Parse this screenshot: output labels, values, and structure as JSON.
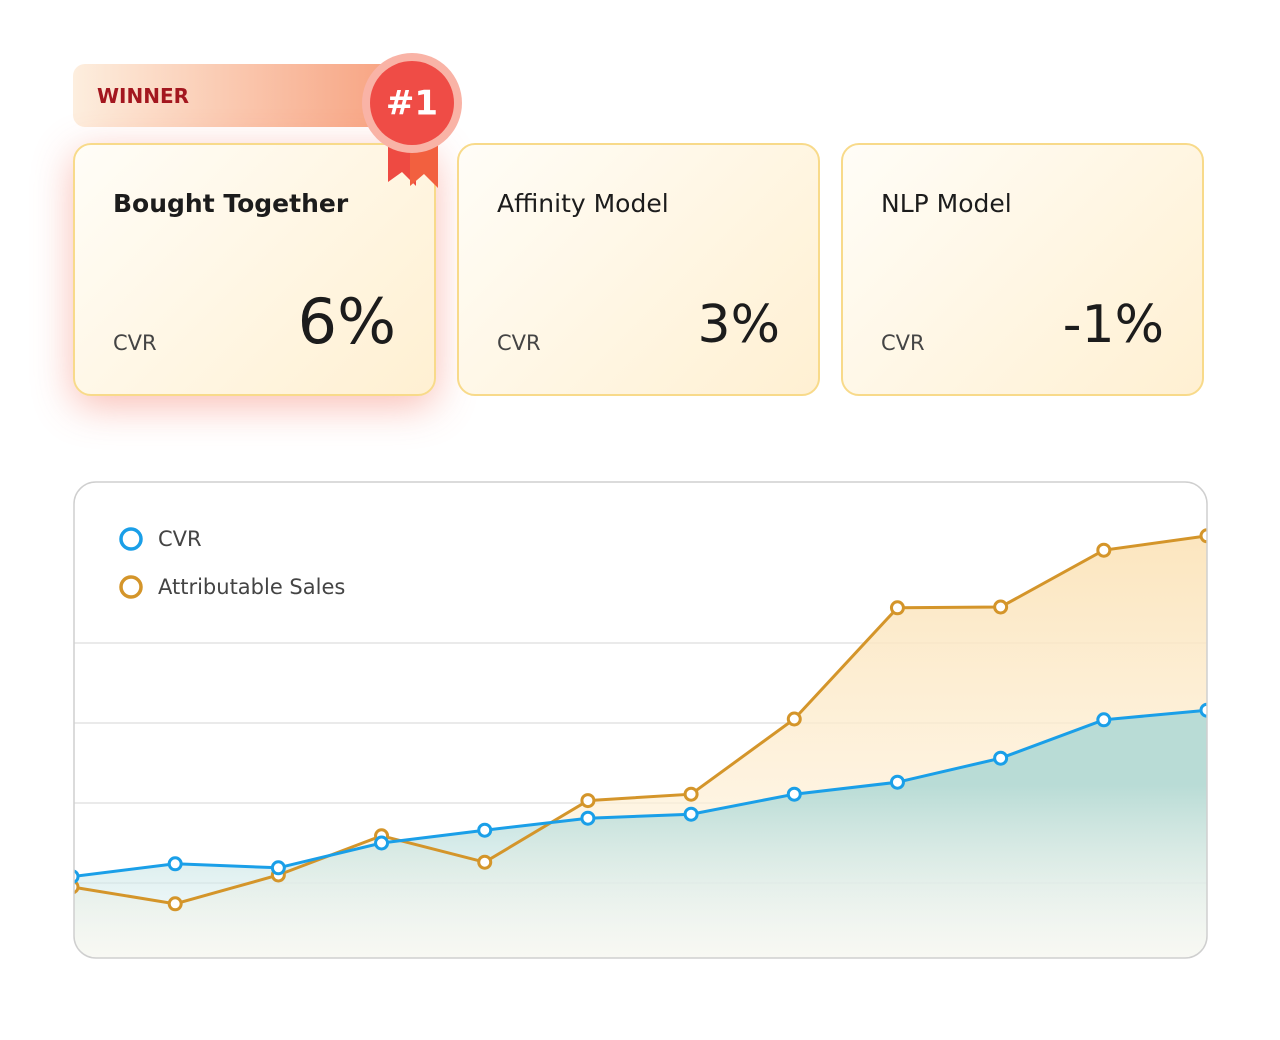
{
  "badge": {
    "label": "WINNER",
    "rank": "#1"
  },
  "cards": [
    {
      "title": "Bought Together",
      "metric": "CVR",
      "value": "6%"
    },
    {
      "title": "Affinity Model",
      "metric": "CVR",
      "value": "3%"
    },
    {
      "title": "NLP Model",
      "metric": "CVR",
      "value": "-1%"
    }
  ],
  "chart_data": {
    "type": "line",
    "categories": [
      null,
      null,
      null,
      null,
      null,
      null,
      null,
      null,
      null,
      null,
      null,
      null
    ],
    "series": [
      {
        "name": "CVR",
        "color": "#1a9fe8",
        "values": [
          0.08,
          0.24,
          0.19,
          0.5,
          0.66,
          0.81,
          0.86,
          1.11,
          1.26,
          1.56,
          2.04,
          2.16
        ]
      },
      {
        "name": "Attributable Sales",
        "color": "#d4952a",
        "values": [
          -0.05,
          -0.26,
          0.1,
          0.59,
          0.26,
          1.03,
          1.11,
          2.05,
          3.44,
          3.45,
          4.16,
          4.34
        ]
      }
    ],
    "ylim": [
      -0.95,
      5
    ],
    "yticks": [
      0,
      1,
      2,
      3
    ],
    "grid": true,
    "legend": "top-left"
  }
}
